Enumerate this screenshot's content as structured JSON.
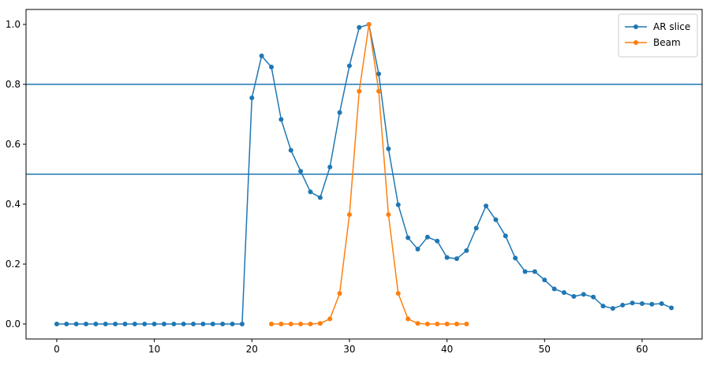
{
  "chart_data": {
    "type": "line",
    "series": [
      {
        "name": "AR slice",
        "color": "#1f77b4",
        "x": [
          0,
          1,
          2,
          3,
          4,
          5,
          6,
          7,
          8,
          9,
          10,
          11,
          12,
          13,
          14,
          15,
          16,
          17,
          18,
          19,
          20,
          21,
          22,
          23,
          24,
          25,
          26,
          27,
          28,
          29,
          30,
          31,
          32,
          33,
          34,
          35,
          36,
          37,
          38,
          39,
          40,
          41,
          42,
          43,
          44,
          45,
          46,
          47,
          48,
          49,
          50,
          51,
          52,
          53,
          54,
          55,
          56,
          57,
          58,
          59,
          60,
          61,
          62,
          63
        ],
        "values": [
          0,
          0,
          0,
          0,
          0,
          0,
          0,
          0,
          0,
          0,
          0,
          0,
          0,
          0,
          0,
          0,
          0,
          0,
          0,
          0,
          0.755,
          0.895,
          0.858,
          0.683,
          0.58,
          0.51,
          0.441,
          0.422,
          0.524,
          0.706,
          0.862,
          0.99,
          1.0,
          0.835,
          0.585,
          0.398,
          0.288,
          0.25,
          0.29,
          0.277,
          0.222,
          0.218,
          0.245,
          0.32,
          0.394,
          0.348,
          0.294,
          0.22,
          0.175,
          0.175,
          0.147,
          0.117,
          0.105,
          0.092,
          0.099,
          0.09,
          0.06,
          0.052,
          0.063,
          0.07,
          0.068,
          0.066,
          0.068,
          0.054
        ]
      },
      {
        "name": "Beam",
        "color": "#ff7f0e",
        "x": [
          22,
          23,
          24,
          25,
          26,
          27,
          28,
          29,
          30,
          31,
          32,
          33,
          34,
          35,
          36,
          37,
          38,
          39,
          40,
          41,
          42
        ],
        "values": [
          0,
          0,
          0,
          0,
          0,
          0.002,
          0.017,
          0.102,
          0.365,
          0.777,
          1.0,
          0.777,
          0.365,
          0.102,
          0.017,
          0.002,
          0,
          0,
          0,
          0,
          0
        ]
      }
    ],
    "hlines": [
      0.8,
      0.5
    ],
    "hline_color": "#1f77b4",
    "xlim": [
      -3.15,
      66.15
    ],
    "ylim": [
      -0.05,
      1.05
    ],
    "xticks": [
      0,
      10,
      20,
      30,
      40,
      50,
      60
    ],
    "yticks": [
      {
        "value": 0,
        "label": "0.0"
      },
      {
        "value": 0.2,
        "label": "0.2"
      },
      {
        "value": 0.4,
        "label": "0.4"
      },
      {
        "value": 0.6,
        "label": "0.6"
      },
      {
        "value": 0.8,
        "label": "0.8"
      },
      {
        "value": 1.0,
        "label": "1.0"
      }
    ],
    "legend": "upper right"
  }
}
